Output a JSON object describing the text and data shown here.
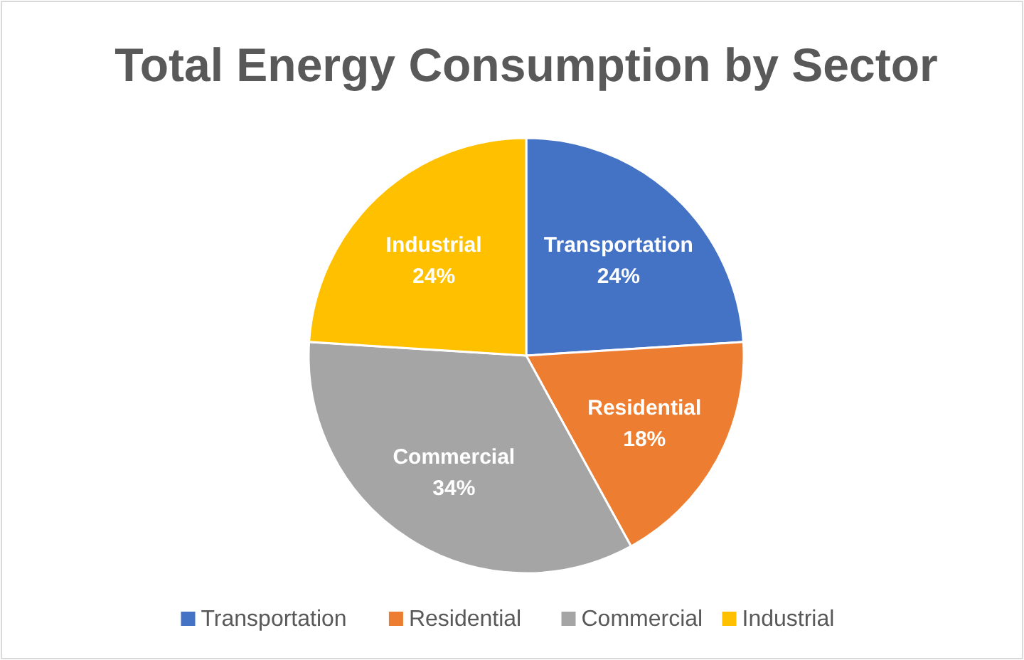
{
  "chart_data": {
    "type": "pie",
    "title": "Total Energy Consumption by Sector",
    "categories": [
      "Transportation",
      "Residential",
      "Commercial",
      "Industrial"
    ],
    "values": [
      24,
      18,
      34,
      24
    ],
    "colors": [
      "#4472c4",
      "#ed7d31",
      "#a5a5a5",
      "#ffc000"
    ],
    "value_labels": [
      "24%",
      "18%",
      "34%",
      "24%"
    ],
    "legend": "bottom"
  }
}
